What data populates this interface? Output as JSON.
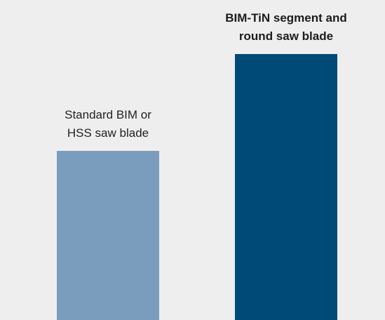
{
  "chart_data": {
    "type": "bar",
    "categories": [
      "Standard BIM or HSS saw blade",
      "BIM-TiN segment and round saw blade"
    ],
    "values": [
      1.0,
      1.57
    ],
    "ylim": [
      0,
      1.57
    ],
    "grid": false,
    "legend": "none",
    "labels": [
      {
        "line1": "Standard BIM or",
        "line2": "HSS saw blade",
        "bold": false
      },
      {
        "line1": "BIM-TiN segment and",
        "line2": "round saw blade",
        "bold": true
      }
    ],
    "colors": [
      "#7a9dbd",
      "#004a78"
    ],
    "background": "#eeeeee"
  }
}
